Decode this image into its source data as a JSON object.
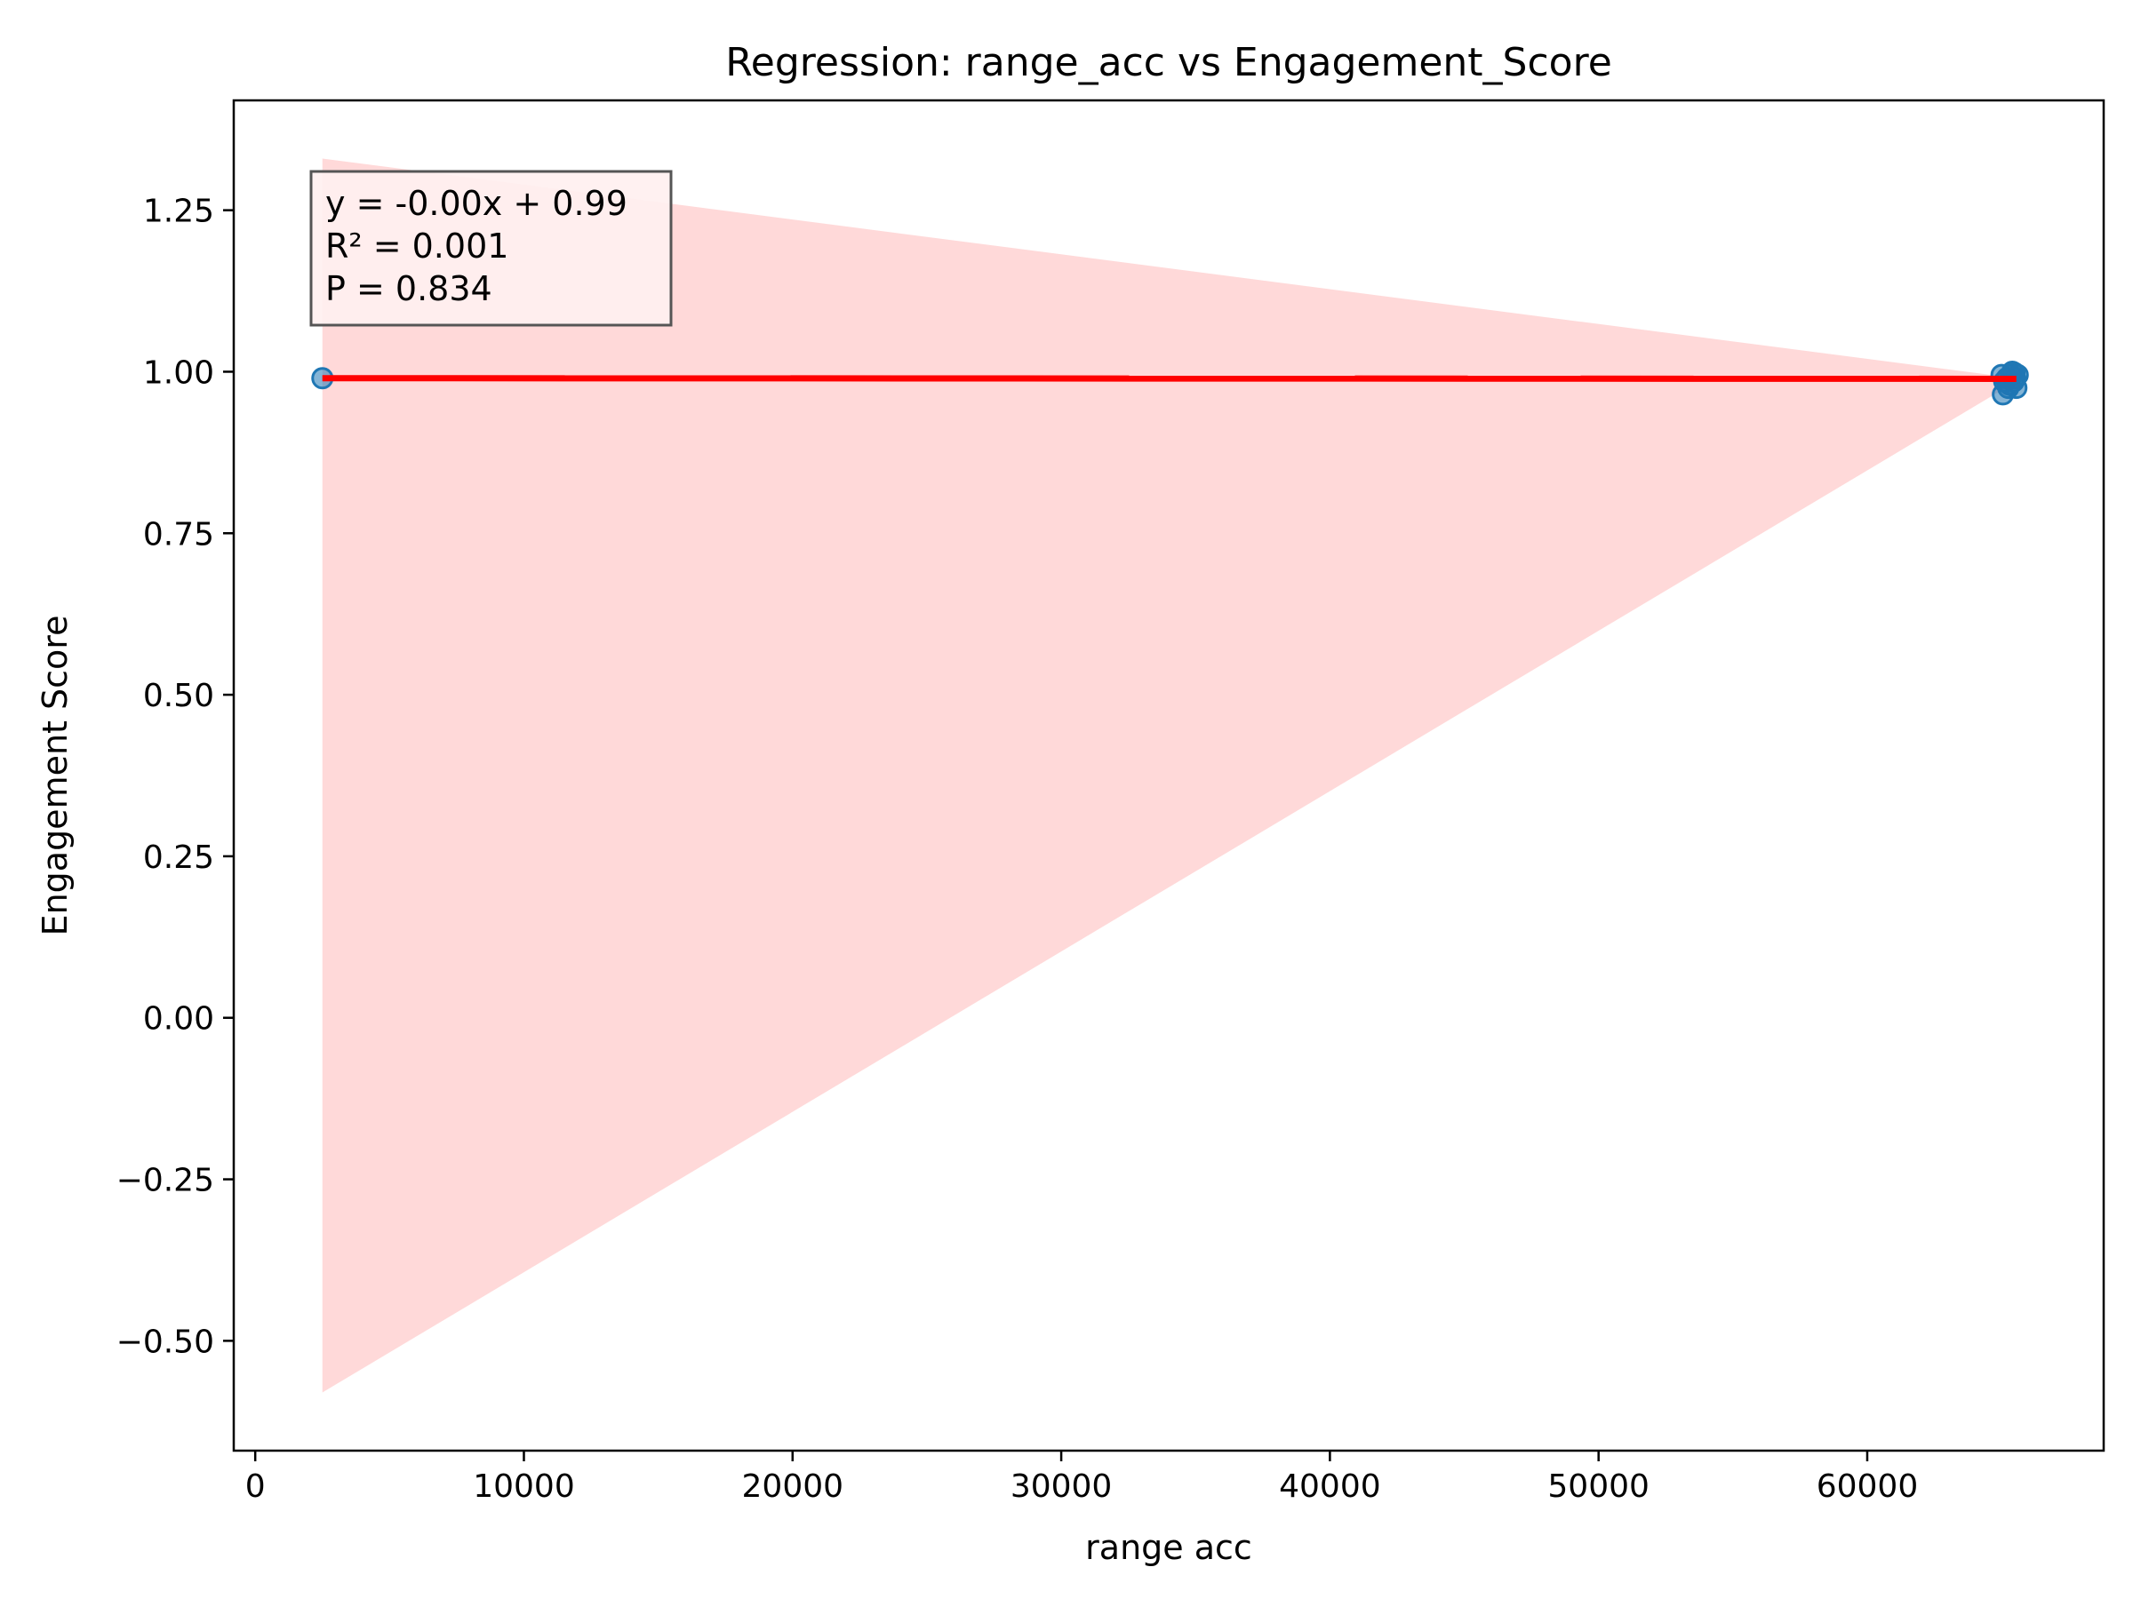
{
  "chart_data": {
    "type": "scatter",
    "title": "Regression: range_acc vs Engagement_Score",
    "xlabel": "range acc",
    "ylabel": "Engagement Score",
    "xlim": [
      -800,
      68800
    ],
    "ylim": [
      -0.67,
      1.42
    ],
    "xticks": [
      0,
      10000,
      20000,
      30000,
      40000,
      50000,
      60000
    ],
    "xtick_labels": [
      "0",
      "10000",
      "20000",
      "30000",
      "40000",
      "50000",
      "60000"
    ],
    "yticks": [
      -0.5,
      -0.25,
      0.0,
      0.25,
      0.5,
      0.75,
      1.0,
      1.25
    ],
    "ytick_labels": [
      "−0.50",
      "−0.25",
      "0.00",
      "0.25",
      "0.50",
      "0.75",
      "1.00",
      "1.25"
    ],
    "grid": false,
    "points": [
      {
        "x": 2500,
        "y": 0.99
      },
      {
        "x": 65000,
        "y": 0.995
      },
      {
        "x": 65100,
        "y": 0.985
      },
      {
        "x": 65200,
        "y": 0.99
      },
      {
        "x": 65300,
        "y": 0.98
      },
      {
        "x": 65350,
        "y": 0.995
      },
      {
        "x": 65400,
        "y": 1.0
      },
      {
        "x": 65450,
        "y": 0.985
      },
      {
        "x": 65500,
        "y": 0.99
      },
      {
        "x": 65550,
        "y": 0.975
      },
      {
        "x": 65600,
        "y": 0.995
      },
      {
        "x": 65050,
        "y": 0.965
      },
      {
        "x": 65250,
        "y": 0.975
      },
      {
        "x": 65480,
        "y": 0.998
      }
    ],
    "regression_line": {
      "x": [
        2500,
        65550
      ],
      "y": [
        0.99,
        0.989
      ]
    },
    "confidence_band": {
      "upper": [
        {
          "x": 2500,
          "y": 1.33
        },
        {
          "x": 65550,
          "y": 0.99
        }
      ],
      "lower": [
        {
          "x": 2500,
          "y": -0.58
        },
        {
          "x": 65550,
          "y": 0.985
        }
      ]
    },
    "annotation": [
      "y = -0.00x + 0.99",
      "R² = 0.001",
      "P = 0.834"
    ],
    "colors": {
      "points": "#1f77b4",
      "line": "#ff0000",
      "band": "#ffcccc",
      "annotation_bg": "#fff0f0"
    }
  }
}
